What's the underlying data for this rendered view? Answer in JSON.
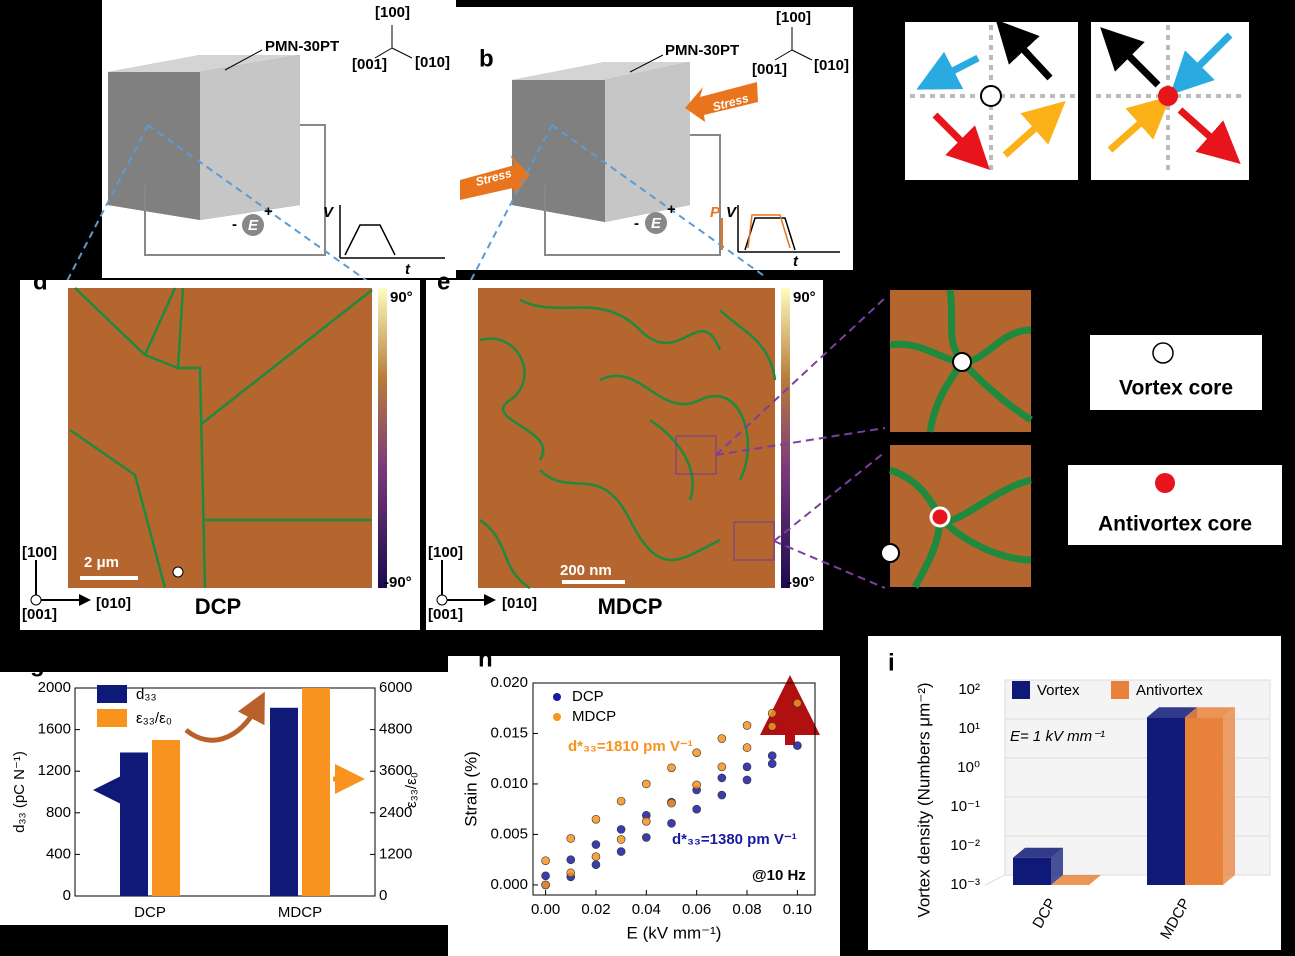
{
  "panels": {
    "a": {
      "sample": "PMN-30PT",
      "axes": [
        "[100]",
        "[001]",
        "[010]"
      ],
      "field": "E",
      "minus": "-",
      "plus": "+",
      "v": "V",
      "t": "t"
    },
    "b": {
      "label": "b",
      "sample": "PMN-30PT",
      "axes": [
        "[100]",
        "[001]",
        "[010]"
      ],
      "stress": [
        "Stress",
        "Stress"
      ],
      "field": "E",
      "minus": "-",
      "plus": "+",
      "p": "P",
      "v": "V",
      "t": "t"
    },
    "d": {
      "label": "d",
      "max": "90°",
      "min": "-90°",
      "axes": [
        "[100]",
        "[001]",
        "[010]"
      ],
      "scale": "2 μm",
      "name": "DCP"
    },
    "e": {
      "label": "e",
      "max": "90°",
      "min": "-90°",
      "axes": [
        "[100]",
        "[001]",
        "[010]"
      ],
      "scale": "200 nm",
      "name": "MDCP"
    },
    "legend": {
      "vortex": "Vortex core",
      "antivortex": "Antivortex core"
    }
  },
  "chart_data": [
    {
      "type": "bar",
      "label": "g",
      "categories": [
        "DCP",
        "MDCP"
      ],
      "series": [
        {
          "name": "d₃₃",
          "color": "#0f1a78",
          "values": [
            1380,
            1810
          ]
        },
        {
          "name": "ε₃₃/ε₀",
          "color": "#f7931e",
          "values": [
            4500,
            6000
          ],
          "axis": "y2"
        }
      ],
      "ylim": [
        0,
        2000
      ],
      "yticks": [
        0,
        400,
        800,
        1200,
        1600,
        2000
      ],
      "y2lim": [
        0,
        6000
      ],
      "y2ticks": [
        0,
        1200,
        2400,
        3600,
        4800,
        6000
      ],
      "ylabel": "d₃₃ (pC N⁻¹)",
      "y2label": "ε₃₃/ε₀"
    },
    {
      "type": "scatter",
      "label": "h",
      "xlabel": "E (kV mm⁻¹)",
      "ylabel": "Strain (%)",
      "xlim": [
        -0.005,
        0.107
      ],
      "xticks": [
        {
          "value": 0,
          "label": "0.00"
        },
        {
          "value": 0.02,
          "label": "0.02"
        },
        {
          "value": 0.04,
          "label": "0.04"
        },
        {
          "value": 0.06,
          "label": "0.06"
        },
        {
          "value": 0.08,
          "label": "0.08"
        },
        {
          "value": 0.1,
          "label": "0.10"
        }
      ],
      "ylim": [
        -0.001,
        0.02
      ],
      "yticks": [
        {
          "value": 0,
          "label": "0.000"
        },
        {
          "value": 0.005,
          "label": "0.005"
        },
        {
          "value": 0.01,
          "label": "0.010"
        },
        {
          "value": 0.015,
          "label": "0.015"
        },
        {
          "value": 0.02,
          "label": "0.020"
        }
      ],
      "series": [
        {
          "name": "DCP",
          "color": "#1a1aa0",
          "x": [
            0,
            0.01,
            0.02,
            0.03,
            0.04,
            0.05,
            0.06,
            0.07,
            0.08,
            0.09,
            0.1,
            0.09,
            0.08,
            0.07,
            0.06,
            0.05,
            0.04,
            0.03,
            0.02,
            0.01,
            0
          ],
          "values": [
            0,
            0.0008,
            0.002,
            0.0033,
            0.0047,
            0.0061,
            0.0075,
            0.0089,
            0.0104,
            0.012,
            0.0138,
            0.0128,
            0.0117,
            0.0106,
            0.0094,
            0.0082,
            0.0069,
            0.0055,
            0.004,
            0.0025,
            0.0009
          ]
        },
        {
          "name": "MDCP",
          "color": "#f7931e",
          "x": [
            0,
            0.01,
            0.02,
            0.03,
            0.04,
            0.05,
            0.06,
            0.07,
            0.08,
            0.09,
            0.1,
            0.09,
            0.08,
            0.07,
            0.06,
            0.05,
            0.04,
            0.03,
            0.02,
            0.01,
            0
          ],
          "values": [
            0,
            0.0012,
            0.0028,
            0.0045,
            0.0063,
            0.0081,
            0.0099,
            0.0117,
            0.0136,
            0.0157,
            0.018,
            0.017,
            0.0158,
            0.0145,
            0.0131,
            0.0116,
            0.01,
            0.0083,
            0.0065,
            0.0046,
            0.0024
          ]
        }
      ],
      "annotations": [
        "d*₃₃=1810 pm V⁻¹",
        "d*₃₃=1380 pm V⁻¹",
        "@10 Hz"
      ]
    },
    {
      "type": "bar3d",
      "label": "i",
      "log_scale": true,
      "categories": [
        "DCP",
        "MDCP"
      ],
      "ylabel": "Vortex density (Numbers μm⁻²)",
      "annotation": "E= 1 kV mm⁻¹",
      "series": [
        {
          "name": "Vortex",
          "color": "#0f1a78",
          "values": [
            0.005,
            20
          ]
        },
        {
          "name": "Antivortex",
          "color": "#e8823a",
          "values": [
            0.001,
            20
          ]
        }
      ],
      "ylim": [
        0.001,
        100
      ],
      "yticks": [
        {
          "value": 0.001,
          "label": "10⁻³"
        },
        {
          "value": 0.01,
          "label": "10⁻²"
        },
        {
          "value": 0.1,
          "label": "10⁻¹"
        },
        {
          "value": 1,
          "label": "10⁰"
        },
        {
          "value": 10,
          "label": "10¹"
        },
        {
          "value": 100,
          "label": "10²"
        }
      ]
    }
  ]
}
